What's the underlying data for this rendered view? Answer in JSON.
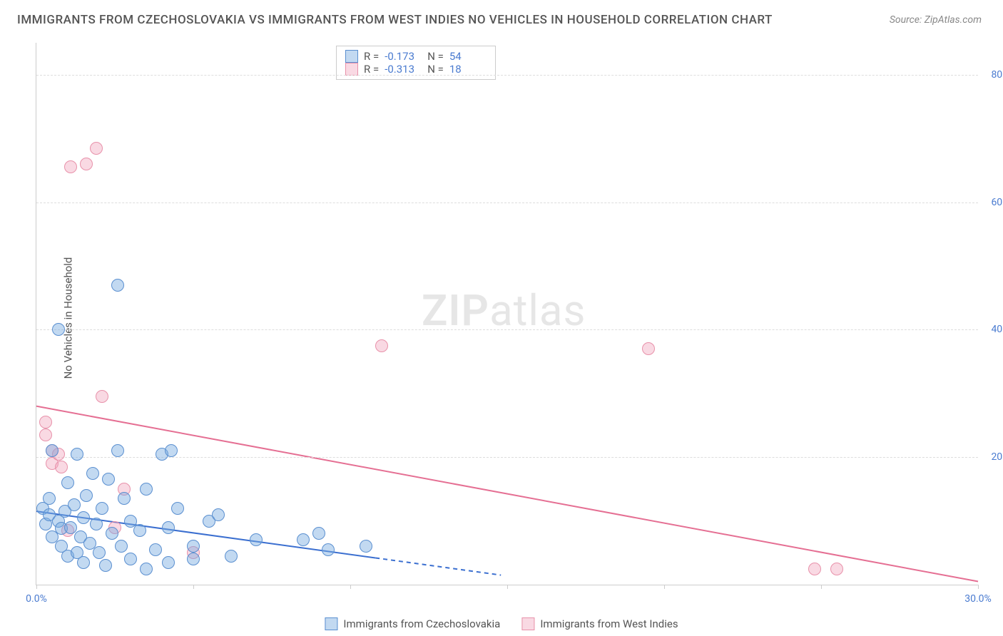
{
  "title": "IMMIGRANTS FROM CZECHOSLOVAKIA VS IMMIGRANTS FROM WEST INDIES NO VEHICLES IN HOUSEHOLD CORRELATION CHART",
  "source": "Source: ZipAtlas.com",
  "watermark_zip": "ZIP",
  "watermark_atlas": "atlas",
  "ylabel": "No Vehicles in Household",
  "chart": {
    "type": "scatter",
    "xlim": [
      0,
      30
    ],
    "ylim": [
      0,
      85
    ],
    "ytick_values": [
      20,
      40,
      60,
      80
    ],
    "ytick_labels": [
      "20.0%",
      "40.0%",
      "60.0%",
      "80.0%"
    ],
    "xtick_values": [
      0,
      5,
      10,
      15,
      20,
      25,
      30
    ],
    "xtick_labels": [
      "0.0%",
      "",
      "",
      "",
      "",
      "",
      "30.0%"
    ],
    "background_color": "#ffffff",
    "grid_color": "#dddddd",
    "marker_radius": 8,
    "series": {
      "blue": {
        "label": "Immigrants from Czechoslovakia",
        "color_fill": "rgba(120,170,225,0.45)",
        "color_stroke": "#5a8fd0",
        "R": "-0.173",
        "N": "54",
        "trend_color": "#3b6fd0",
        "trend_solid": [
          [
            0.0,
            11.5
          ],
          [
            10.8,
            4.2
          ]
        ],
        "trend_dash": [
          [
            10.8,
            4.2
          ],
          [
            14.8,
            1.5
          ]
        ],
        "points": [
          [
            0.2,
            12.0
          ],
          [
            0.3,
            9.5
          ],
          [
            0.4,
            11.0
          ],
          [
            0.4,
            13.5
          ],
          [
            0.5,
            7.5
          ],
          [
            0.5,
            21.0
          ],
          [
            0.7,
            10.0
          ],
          [
            0.7,
            40.0
          ],
          [
            0.8,
            8.8
          ],
          [
            0.8,
            6.0
          ],
          [
            0.9,
            11.5
          ],
          [
            1.0,
            4.5
          ],
          [
            1.0,
            16.0
          ],
          [
            1.1,
            9.0
          ],
          [
            1.2,
            12.5
          ],
          [
            1.3,
            5.0
          ],
          [
            1.3,
            20.5
          ],
          [
            1.4,
            7.5
          ],
          [
            1.5,
            3.5
          ],
          [
            1.5,
            10.5
          ],
          [
            1.6,
            14.0
          ],
          [
            1.7,
            6.5
          ],
          [
            1.8,
            17.5
          ],
          [
            1.9,
            9.5
          ],
          [
            2.0,
            5.0
          ],
          [
            2.1,
            12.0
          ],
          [
            2.2,
            3.0
          ],
          [
            2.3,
            16.5
          ],
          [
            2.4,
            8.0
          ],
          [
            2.6,
            21.0
          ],
          [
            2.6,
            47.0
          ],
          [
            2.7,
            6.0
          ],
          [
            2.8,
            13.5
          ],
          [
            3.0,
            4.0
          ],
          [
            3.0,
            10.0
          ],
          [
            3.3,
            8.5
          ],
          [
            3.5,
            2.5
          ],
          [
            3.5,
            15.0
          ],
          [
            3.8,
            5.5
          ],
          [
            4.0,
            20.5
          ],
          [
            4.2,
            9.0
          ],
          [
            4.2,
            3.5
          ],
          [
            4.3,
            21.0
          ],
          [
            4.5,
            12.0
          ],
          [
            5.0,
            6.0
          ],
          [
            5.0,
            4.0
          ],
          [
            5.5,
            10.0
          ],
          [
            5.8,
            11.0
          ],
          [
            6.2,
            4.5
          ],
          [
            7.0,
            7.0
          ],
          [
            8.5,
            7.0
          ],
          [
            9.0,
            8.0
          ],
          [
            9.3,
            5.5
          ],
          [
            10.5,
            6.0
          ]
        ]
      },
      "pink": {
        "label": "Immigrants from West Indies",
        "color_fill": "rgba(240,160,185,0.40)",
        "color_stroke": "#e891aa",
        "R": "-0.313",
        "N": "18",
        "trend_color": "#e56f93",
        "trend_solid": [
          [
            0.0,
            28.0
          ],
          [
            30.0,
            0.5
          ]
        ],
        "points": [
          [
            0.3,
            23.5
          ],
          [
            0.3,
            25.5
          ],
          [
            0.5,
            21.0
          ],
          [
            0.5,
            19.0
          ],
          [
            0.7,
            20.5
          ],
          [
            0.8,
            18.5
          ],
          [
            1.0,
            8.5
          ],
          [
            1.1,
            65.5
          ],
          [
            1.6,
            66.0
          ],
          [
            1.9,
            68.5
          ],
          [
            2.1,
            29.5
          ],
          [
            2.5,
            9.0
          ],
          [
            2.8,
            15.0
          ],
          [
            5.0,
            5.0
          ],
          [
            11.0,
            37.5
          ],
          [
            19.5,
            37.0
          ],
          [
            24.8,
            2.5
          ],
          [
            25.5,
            2.5
          ]
        ]
      }
    }
  },
  "legend_bottom": {
    "blue": "Immigrants from Czechoslovakia",
    "pink": "Immigrants from West Indies"
  },
  "legend_rn_labels": {
    "r": "R =",
    "n": "N ="
  }
}
